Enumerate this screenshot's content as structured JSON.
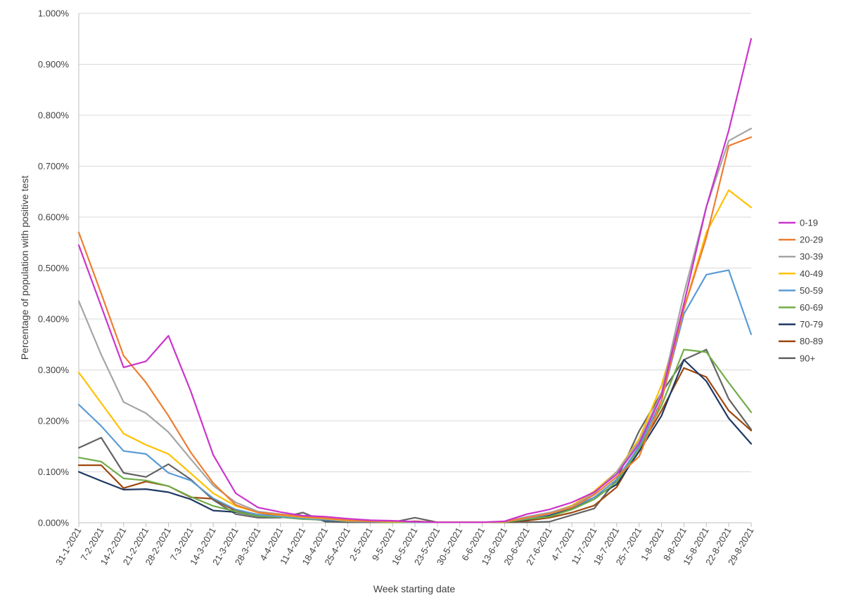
{
  "chart_data": {
    "type": "line",
    "title": "",
    "xlabel": "Week starting date",
    "ylabel": "Percentage of population with positive test",
    "ylim": [
      0,
      1.0
    ],
    "yticks": [
      "0.000%",
      "0.100%",
      "0.200%",
      "0.300%",
      "0.400%",
      "0.500%",
      "0.600%",
      "0.700%",
      "0.800%",
      "0.900%",
      "1.000%"
    ],
    "grid": true,
    "legend_position": "right",
    "x": [
      "31-1-2021",
      "7-2-2021",
      "14-2-2021",
      "21-2-2021",
      "28-2-2021",
      "7-3-2021",
      "14-3-2021",
      "21-3-2021",
      "28-3-2021",
      "4-4-2021",
      "11-4-2021",
      "18-4-2021",
      "25-4-2021",
      "2-5-2021",
      "9-5-2021",
      "16-5-2021",
      "23-5-2021",
      "30-5-2021",
      "6-6-2021",
      "13-6-2021",
      "20-6-2021",
      "27-6-2021",
      "4-7-2021",
      "11-7-2021",
      "18-7-2021",
      "25-7-2021",
      "1-8-2021",
      "8-8-2021",
      "15-8-2021",
      "22-8-2021",
      "29-8-2021"
    ],
    "series": [
      {
        "name": "0-19",
        "color": "#cc33cc",
        "values": [
          0.545,
          0.425,
          0.305,
          0.317,
          0.367,
          0.258,
          0.133,
          0.058,
          0.03,
          0.021,
          0.014,
          0.012,
          0.008,
          0.005,
          0.004,
          0.002,
          0.001,
          0.001,
          0.001,
          0.003,
          0.017,
          0.026,
          0.04,
          0.06,
          0.095,
          0.155,
          0.25,
          0.43,
          0.62,
          0.77,
          0.95
        ]
      },
      {
        "name": "20-29",
        "color": "#ed7d31",
        "values": [
          0.57,
          0.45,
          0.328,
          0.275,
          0.21,
          0.138,
          0.078,
          0.035,
          0.02,
          0.016,
          0.012,
          0.009,
          0.005,
          0.003,
          0.003,
          0.002,
          0.001,
          0.001,
          0.001,
          0.002,
          0.01,
          0.018,
          0.03,
          0.055,
          0.09,
          0.13,
          0.24,
          0.42,
          0.56,
          0.74,
          0.757
        ]
      },
      {
        "name": "30-39",
        "color": "#a5a5a5",
        "values": [
          0.435,
          0.33,
          0.237,
          0.215,
          0.178,
          0.125,
          0.073,
          0.04,
          0.022,
          0.017,
          0.013,
          0.009,
          0.005,
          0.003,
          0.003,
          0.002,
          0.001,
          0.001,
          0.001,
          0.002,
          0.012,
          0.02,
          0.032,
          0.058,
          0.1,
          0.16,
          0.255,
          0.45,
          0.62,
          0.75,
          0.774
        ]
      },
      {
        "name": "40-49",
        "color": "#ffc000",
        "values": [
          0.295,
          0.235,
          0.175,
          0.153,
          0.135,
          0.097,
          0.058,
          0.033,
          0.02,
          0.015,
          0.011,
          0.008,
          0.004,
          0.003,
          0.002,
          0.002,
          0.001,
          0.001,
          0.001,
          0.002,
          0.01,
          0.019,
          0.034,
          0.062,
          0.1,
          0.165,
          0.27,
          0.42,
          0.57,
          0.653,
          0.619
        ]
      },
      {
        "name": "50-59",
        "color": "#5b9bd5",
        "values": [
          0.232,
          0.19,
          0.141,
          0.135,
          0.098,
          0.083,
          0.048,
          0.026,
          0.016,
          0.012,
          0.009,
          0.006,
          0.003,
          0.002,
          0.002,
          0.001,
          0.001,
          0.001,
          0.001,
          0.002,
          0.009,
          0.017,
          0.03,
          0.05,
          0.085,
          0.15,
          0.24,
          0.41,
          0.487,
          0.496,
          0.37
        ]
      },
      {
        "name": "60-69",
        "color": "#70ad47",
        "values": [
          0.128,
          0.12,
          0.087,
          0.083,
          0.072,
          0.051,
          0.033,
          0.022,
          0.013,
          0.011,
          0.007,
          0.006,
          0.003,
          0.002,
          0.001,
          0.001,
          0.001,
          0.001,
          0.001,
          0.001,
          0.007,
          0.012,
          0.026,
          0.046,
          0.08,
          0.145,
          0.23,
          0.34,
          0.335,
          0.275,
          0.217
        ]
      },
      {
        "name": "70-79",
        "color": "#1f3864",
        "values": [
          0.1,
          0.082,
          0.065,
          0.066,
          0.06,
          0.046,
          0.024,
          0.021,
          0.013,
          0.011,
          0.008,
          0.005,
          0.003,
          0.002,
          0.001,
          0.001,
          0.001,
          0.001,
          0.001,
          0.001,
          0.006,
          0.014,
          0.028,
          0.05,
          0.075,
          0.14,
          0.21,
          0.32,
          0.278,
          0.205,
          0.155
        ]
      },
      {
        "name": "80-89",
        "color": "#9e480e",
        "values": [
          0.113,
          0.113,
          0.068,
          0.081,
          0.072,
          0.05,
          0.047,
          0.023,
          0.016,
          0.014,
          0.01,
          0.007,
          0.003,
          0.001,
          0.001,
          0.003,
          0.001,
          0.001,
          0.001,
          0.001,
          0.004,
          0.01,
          0.02,
          0.034,
          0.07,
          0.145,
          0.22,
          0.304,
          0.286,
          0.22,
          0.181
        ]
      },
      {
        "name": "90+",
        "color": "#636363",
        "values": [
          0.147,
          0.167,
          0.098,
          0.09,
          0.115,
          0.085,
          0.045,
          0.017,
          0.01,
          0.01,
          0.02,
          0.002,
          0.001,
          0.001,
          0.001,
          0.01,
          0.001,
          0.001,
          0.001,
          0.001,
          0.001,
          0.002,
          0.015,
          0.028,
          0.085,
          0.18,
          0.255,
          0.32,
          0.34,
          0.243,
          0.183
        ]
      }
    ]
  }
}
